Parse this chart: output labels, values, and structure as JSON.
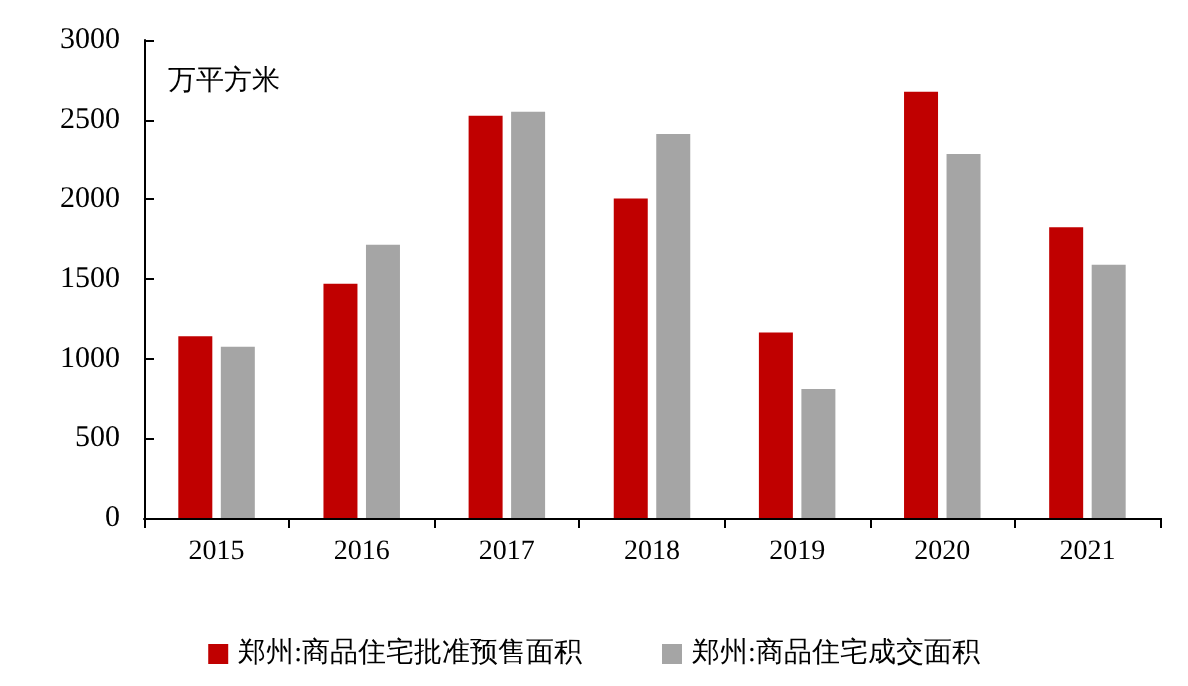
{
  "chart_data": {
    "type": "bar",
    "ylabel": "万平方米",
    "categories": [
      "2015",
      "2016",
      "2017",
      "2018",
      "2019",
      "2020",
      "2021"
    ],
    "series": [
      {
        "name": "郑州:商品住宅批准预售面积",
        "color": "#c00000",
        "values": [
          1140,
          1470,
          2525,
          2005,
          1165,
          2675,
          1825
        ]
      },
      {
        "name": "郑州:商品住宅成交面积",
        "color": "#a5a5a5",
        "values": [
          1075,
          1715,
          2550,
          2410,
          810,
          2285,
          1590
        ]
      }
    ],
    "ylim": [
      0,
      3000
    ],
    "yticks": [
      0,
      500,
      1000,
      1500,
      2000,
      2500,
      3000
    ],
    "grid": false,
    "legend": "bottom"
  }
}
